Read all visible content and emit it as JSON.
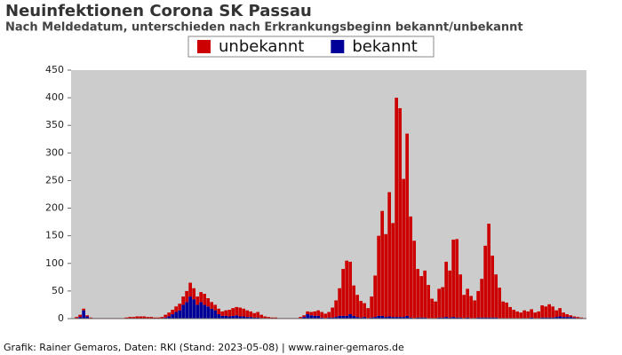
{
  "chart_data": {
    "type": "stacked_bar",
    "title": "Neuinfektionen Corona SK Passau",
    "subtitle": "Nach Meldedatum, unterschieden nach Erkrankungsbeginn bekannt/unbekannt",
    "source": "Grafik: Rainer Gemaros, Daten: RKI (Stand: 2023-05-08) | www.rainer-gemaros.de",
    "categories": [
      null,
      null,
      null,
      null,
      null,
      null,
      null,
      null,
      null,
      null,
      null,
      null,
      null,
      null,
      null,
      null,
      null,
      null,
      null,
      null,
      null,
      null,
      null,
      null,
      null,
      null,
      null,
      null,
      null,
      null,
      null,
      null,
      null,
      null,
      null,
      null,
      null,
      null,
      null,
      null,
      null,
      null,
      null,
      null,
      null,
      null,
      null,
      null,
      null,
      null,
      null,
      null,
      null,
      null,
      null,
      null,
      null,
      null,
      null,
      null,
      null,
      null,
      null,
      null,
      null,
      null,
      null,
      null,
      null,
      null,
      null,
      null,
      null,
      null,
      null,
      null,
      null,
      null,
      null,
      null,
      null,
      null,
      null,
      null,
      null,
      null,
      null,
      null,
      null,
      null,
      null,
      null,
      null,
      null,
      null,
      null,
      null,
      null,
      null,
      null,
      null,
      null,
      null,
      null,
      null,
      null,
      null,
      null,
      null,
      null,
      null,
      null,
      null,
      null,
      null,
      null,
      null,
      null,
      null,
      null,
      null,
      null,
      null,
      null,
      null,
      null,
      null,
      null,
      null,
      null,
      null,
      null,
      null,
      null,
      null,
      null,
      null,
      null,
      null,
      null,
      null,
      null,
      null,
      null,
      null
    ],
    "series": [
      {
        "name": "bekannt",
        "color": "#000099",
        "values": [
          0,
          1,
          3,
          15,
          4,
          1,
          0,
          0,
          0,
          0,
          0,
          0,
          0,
          0,
          0,
          0,
          0,
          0,
          0,
          0,
          0,
          0,
          0,
          0,
          0,
          0,
          2,
          4,
          8,
          12,
          15,
          25,
          30,
          40,
          35,
          25,
          30,
          25,
          22,
          18,
          15,
          8,
          5,
          5,
          4,
          5,
          6,
          4,
          4,
          3,
          3,
          2,
          2,
          1,
          1,
          1,
          0,
          0,
          0,
          0,
          0,
          0,
          0,
          0,
          1,
          3,
          8,
          6,
          5,
          5,
          2,
          1,
          2,
          2,
          3,
          5,
          5,
          5,
          8,
          5,
          3,
          2,
          3,
          1,
          2,
          3,
          5,
          5,
          3,
          4,
          3,
          3,
          3,
          3,
          5,
          2,
          1,
          2,
          2,
          2,
          1,
          1,
          1,
          2,
          2,
          3,
          2,
          3,
          2,
          2,
          1,
          2,
          1,
          1,
          2,
          2,
          2,
          2,
          2,
          2,
          1,
          1,
          1,
          1,
          1,
          1,
          1,
          1,
          1,
          2,
          1,
          1,
          2,
          2,
          2,
          2,
          3,
          4,
          3,
          3,
          3,
          2,
          1,
          1,
          0
        ]
      },
      {
        "name": "unbekannt",
        "color": "#cc0000",
        "values": [
          0,
          2,
          4,
          3,
          2,
          1,
          1,
          1,
          1,
          1,
          1,
          1,
          1,
          1,
          1,
          2,
          3,
          3,
          4,
          4,
          4,
          3,
          3,
          2,
          2,
          3,
          5,
          7,
          8,
          10,
          12,
          15,
          20,
          25,
          20,
          15,
          18,
          20,
          15,
          12,
          10,
          10,
          8,
          10,
          12,
          14,
          15,
          16,
          14,
          12,
          10,
          8,
          10,
          6,
          3,
          2,
          2,
          2,
          1,
          1,
          1,
          1,
          1,
          1,
          2,
          3,
          5,
          6,
          8,
          10,
          10,
          8,
          10,
          18,
          30,
          50,
          85,
          100,
          95,
          55,
          40,
          30,
          25,
          18,
          38,
          75,
          145,
          190,
          150,
          225,
          170,
          397,
          378,
          250,
          330,
          183,
          140,
          88,
          75,
          85,
          60,
          35,
          30,
          52,
          55,
          100,
          85,
          140,
          142,
          78,
          42,
          52,
          40,
          32,
          48,
          70,
          130,
          170,
          112,
          78,
          55,
          30,
          28,
          20,
          15,
          12,
          10,
          14,
          12,
          15,
          10,
          12,
          22,
          20,
          24,
          20,
          12,
          15,
          8,
          5,
          3,
          2,
          2,
          1,
          1
        ]
      }
    ],
    "legend_order": [
      "unbekannt",
      "bekannt"
    ],
    "ylim": [
      0,
      450
    ],
    "yticks": [
      0,
      50,
      100,
      150,
      200,
      250,
      300,
      350,
      400,
      450
    ],
    "grid": false,
    "plot_background": "#cccccc"
  }
}
